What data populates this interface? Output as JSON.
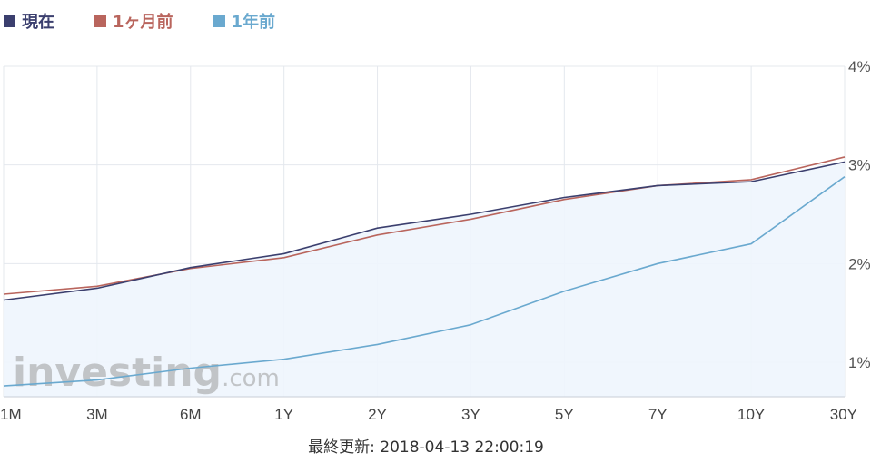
{
  "chart_data": {
    "type": "line",
    "categories": [
      "1M",
      "3M",
      "6M",
      "1Y",
      "2Y",
      "3Y",
      "5Y",
      "7Y",
      "10Y",
      "30Y"
    ],
    "series": [
      {
        "name": "現在",
        "color": "#3b3f6e",
        "values": [
          1.63,
          1.75,
          1.96,
          2.1,
          2.36,
          2.5,
          2.67,
          2.79,
          2.83,
          3.03
        ]
      },
      {
        "name": "1ヶ月前",
        "color": "#b9655d",
        "values": [
          1.69,
          1.77,
          1.95,
          2.06,
          2.29,
          2.45,
          2.65,
          2.79,
          2.85,
          3.08
        ]
      },
      {
        "name": "1年前",
        "color": "#6aa9cf",
        "values": [
          0.76,
          0.82,
          0.94,
          1.03,
          1.18,
          1.38,
          1.72,
          2.0,
          2.2,
          2.88
        ]
      }
    ],
    "yticks": [
      1,
      2,
      3,
      4
    ],
    "ytick_labels": [
      "1%",
      "2%",
      "3%",
      "4%"
    ],
    "ylim": [
      0.65,
      4.0
    ],
    "grid": true,
    "legend_position": "top-left",
    "y_axis_position": "right",
    "title": "",
    "xlabel": "",
    "ylabel": ""
  },
  "watermark": {
    "text_main": "investing",
    "text_suffix": ".com"
  },
  "footer": {
    "text": "最終更新: 2018-04-13 22:00:19"
  }
}
